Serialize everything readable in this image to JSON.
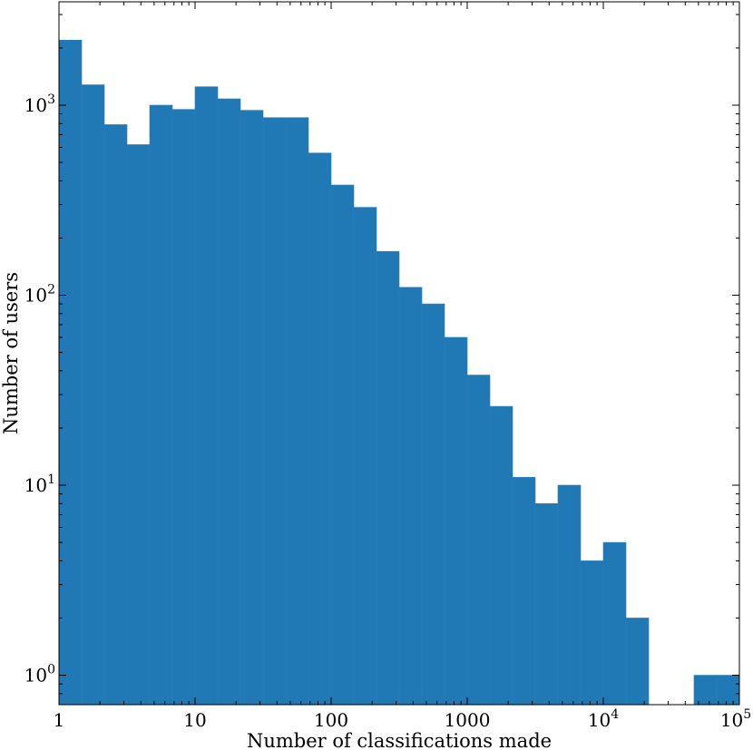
{
  "chart_data": {
    "type": "bar",
    "xlabel": "Number of classifications made",
    "ylabel": "Number of users",
    "x_scale": "log",
    "y_scale": "log",
    "xlim": [
      1,
      100000
    ],
    "ylim": [
      0.7,
      3500
    ],
    "grid": false,
    "bar_color": "#2078b4",
    "bin_edges": [
      1,
      1.468,
      2.154,
      3.162,
      4.642,
      6.813,
      10,
      14.68,
      21.54,
      31.62,
      46.42,
      68.13,
      100,
      146.8,
      215.4,
      316.2,
      464.2,
      681.3,
      1000,
      1468,
      2154,
      3162,
      4642,
      6813,
      10000,
      14678,
      21544,
      31623,
      46416,
      68129,
      100000
    ],
    "values": [
      2200,
      1280,
      790,
      620,
      1000,
      950,
      1250,
      1080,
      940,
      860,
      860,
      560,
      380,
      290,
      170,
      110,
      90,
      60,
      38,
      26,
      11,
      8,
      10,
      4,
      5,
      2,
      0,
      0,
      1,
      1
    ],
    "x_ticks": [
      {
        "value": 1,
        "label": "1"
      },
      {
        "value": 10,
        "label": "10"
      },
      {
        "value": 100,
        "label": "100"
      },
      {
        "value": 1000,
        "label": "1000"
      },
      {
        "value": 10000,
        "base": "10",
        "exp": "4"
      },
      {
        "value": 100000,
        "base": "10",
        "exp": "5"
      }
    ],
    "y_ticks": [
      {
        "value": 1,
        "base": "10",
        "exp": "0"
      },
      {
        "value": 10,
        "base": "10",
        "exp": "1"
      },
      {
        "value": 100,
        "base": "10",
        "exp": "2"
      },
      {
        "value": 1000,
        "base": "10",
        "exp": "3"
      }
    ]
  }
}
